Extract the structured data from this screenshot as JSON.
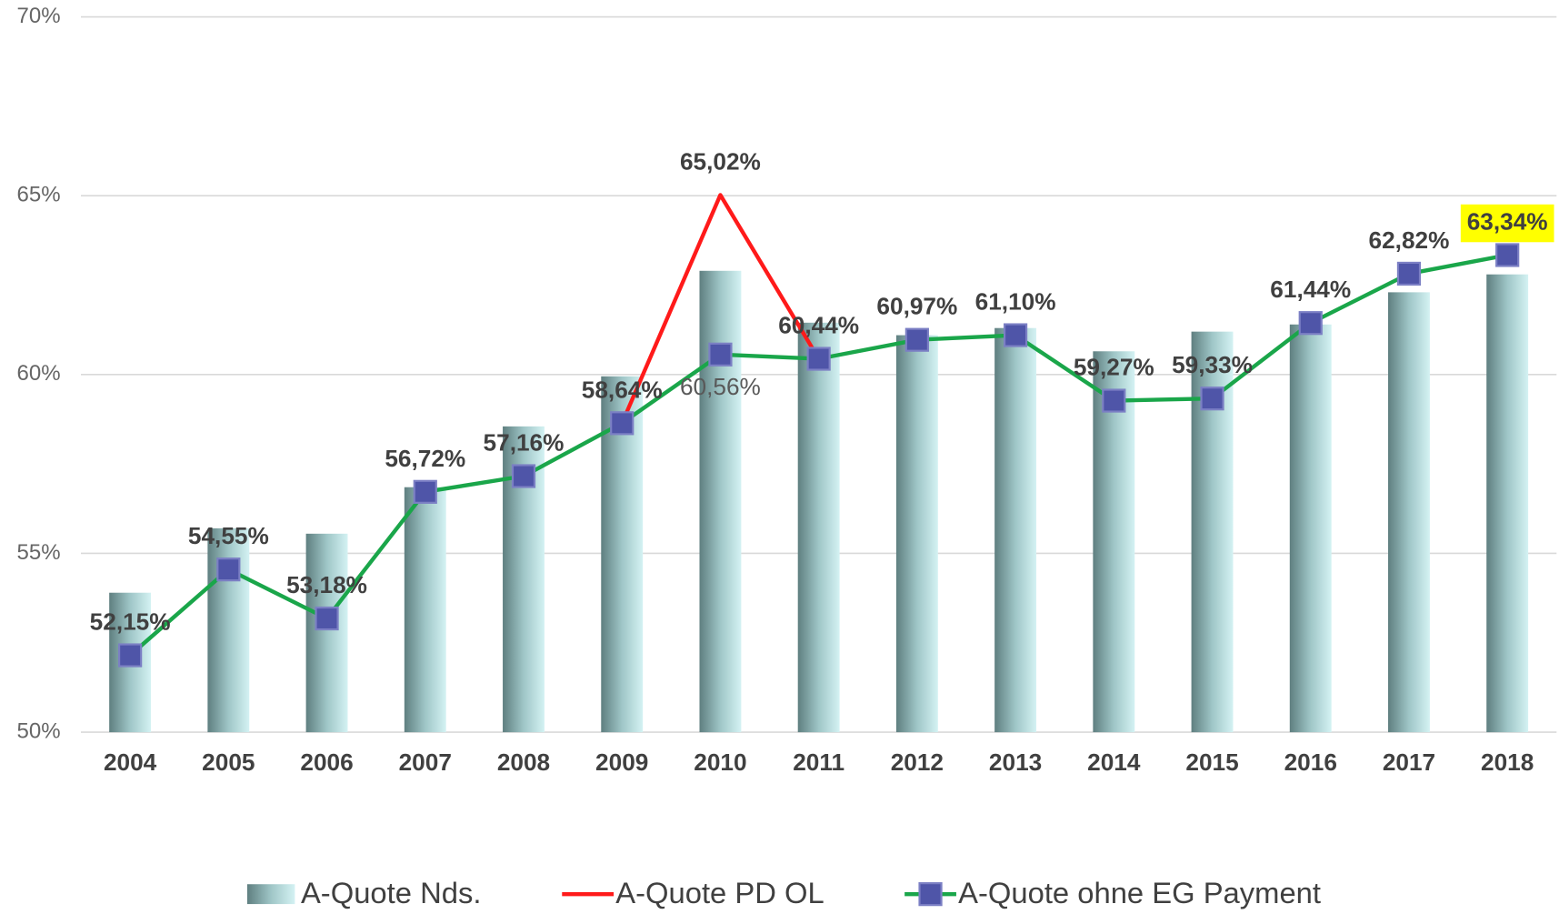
{
  "chart_data": {
    "type": "bar-line",
    "categories": [
      "2004",
      "2005",
      "2006",
      "2007",
      "2008",
      "2009",
      "2010",
      "2011",
      "2012",
      "2013",
      "2014",
      "2015",
      "2016",
      "2017",
      "2018"
    ],
    "ylim": [
      50,
      70
    ],
    "yticks": [
      {
        "value": 50,
        "label": "50%"
      },
      {
        "value": 55,
        "label": "55%"
      },
      {
        "value": 60,
        "label": "60%"
      },
      {
        "value": 65,
        "label": "65%"
      },
      {
        "value": 70,
        "label": "70%"
      }
    ],
    "grid": true,
    "legend": "bottom",
    "series": [
      {
        "name": "A-Quote Nds.",
        "type": "bar",
        "color": "#5f8a8b",
        "values": [
          53.9,
          55.7,
          55.55,
          56.85,
          58.55,
          59.95,
          62.9,
          61.45,
          61.1,
          61.3,
          60.65,
          61.2,
          61.4,
          62.3,
          62.8
        ]
      },
      {
        "name": "A-Quote PD OL",
        "type": "line",
        "color": "#ff1a1a",
        "values": [
          null,
          null,
          null,
          null,
          null,
          58.64,
          65.02,
          60.44,
          null,
          null,
          null,
          null,
          null,
          null,
          null
        ],
        "value_labels": [
          null,
          null,
          null,
          null,
          null,
          null,
          "65,02%",
          null,
          null,
          null,
          null,
          null,
          null,
          null,
          null
        ]
      },
      {
        "name": "A-Quote ohne EG Payment",
        "type": "line",
        "color": "#1aa64a",
        "marker_color": "#4f55a8",
        "values": [
          52.15,
          54.55,
          53.18,
          56.72,
          57.16,
          58.64,
          60.56,
          60.44,
          60.97,
          61.1,
          59.27,
          59.33,
          61.44,
          62.82,
          63.34
        ],
        "value_labels": [
          "52,15%",
          "54,55%",
          "53,18%",
          "56,72%",
          "57,16%",
          "58,64%",
          "60,56%",
          "60,44%",
          "60,97%",
          "61,10%",
          "59,27%",
          "59,33%",
          "61,44%",
          "62,82%",
          "63,34%"
        ]
      }
    ]
  }
}
